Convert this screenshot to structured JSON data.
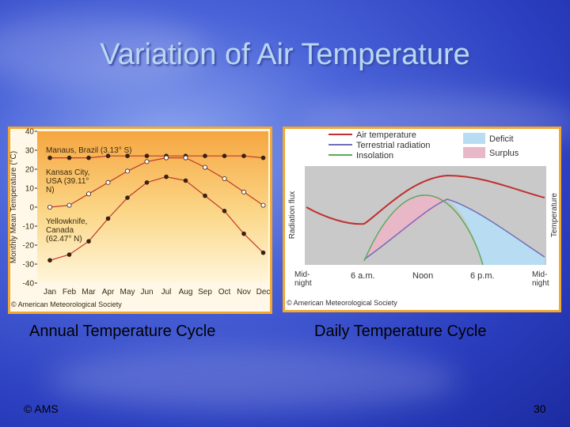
{
  "slide": {
    "title": "Variation of Air Temperature",
    "captions": [
      "Annual Temperature Cycle",
      "Daily Temperature Cycle"
    ],
    "footer": "© AMS",
    "page_number": 30
  },
  "chart_data": {
    "type": "line",
    "y_label": "Monthly Mean Temperature (°C)",
    "credit": "© American Meteorological Society",
    "categories": [
      "Jan",
      "Feb",
      "Mar",
      "Apr",
      "May",
      "Jun",
      "Jul",
      "Aug",
      "Sep",
      "Oct",
      "Nov",
      "Dec"
    ],
    "ylim": [
      -40,
      40
    ],
    "yticks": [
      -40,
      -30,
      -20,
      -10,
      0,
      10,
      20,
      30,
      40
    ],
    "series": [
      {
        "name": "Manaus, Brazil (3.13° S)",
        "color": "#c0392b",
        "values": [
          26,
          26,
          26,
          27,
          27,
          27,
          27,
          27,
          27,
          27,
          27,
          26
        ]
      },
      {
        "name": "Kansas City, USA (39.11° N)",
        "color": "#c0392b",
        "values": [
          0,
          1,
          7,
          13,
          19,
          24,
          26,
          26,
          21,
          15,
          8,
          1
        ]
      },
      {
        "name": "Yellowknife, Canada (62.47° N)",
        "color": "#c0392b",
        "values": [
          -28,
          -25,
          -18,
          -6,
          5,
          13,
          16,
          14,
          6,
          -2,
          -14,
          -24
        ]
      }
    ]
  },
  "daily_diagram": {
    "legend": [
      "Air temperature",
      "Terrestrial radiation",
      "Insolation",
      "Deficit",
      "Surplus"
    ],
    "y_label": "Radiation flux",
    "y2_label": "Temperature",
    "x_labels": [
      "Mid-night",
      "6 a.m.",
      "Noon",
      "6 p.m.",
      "Mid-night"
    ],
    "credit": "© American Meteorological Society"
  }
}
